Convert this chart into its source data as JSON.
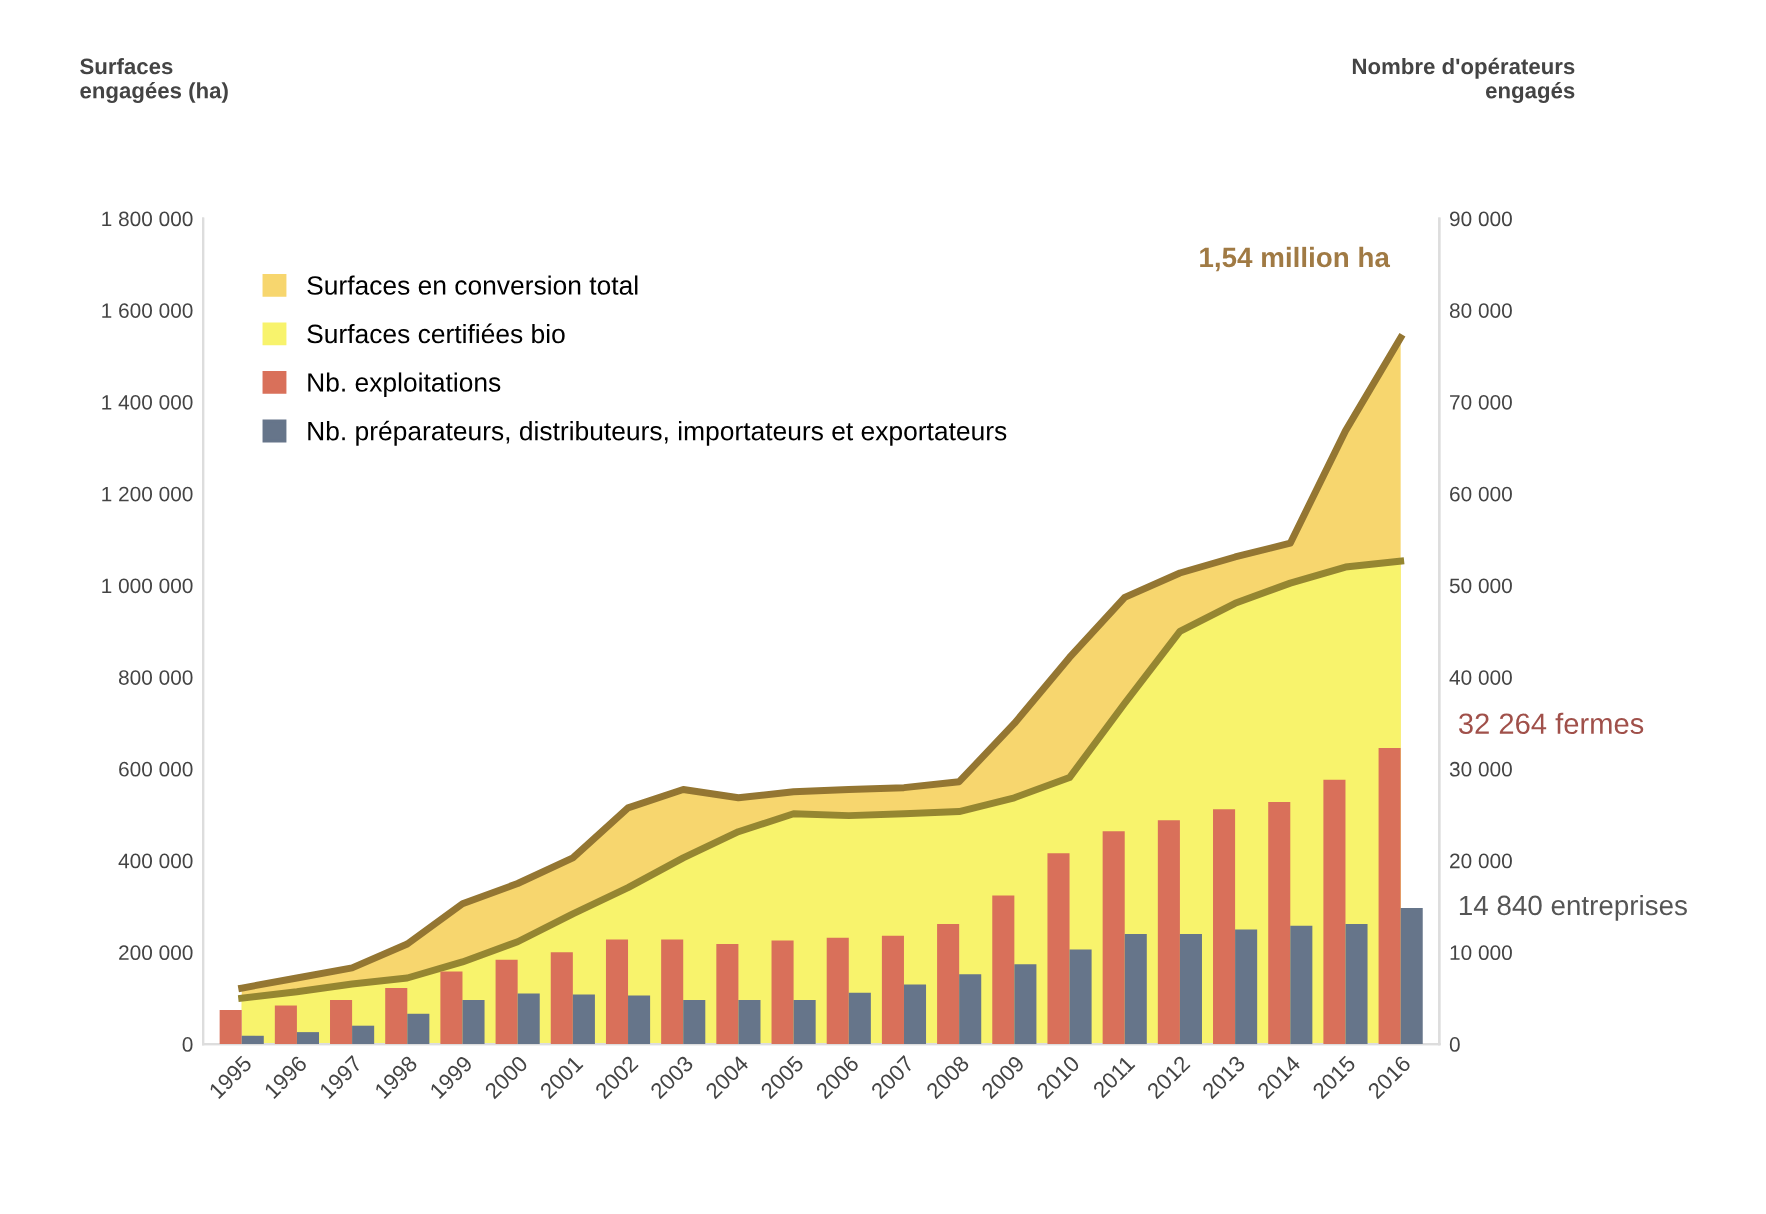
{
  "chart_data": {
    "type": "bar",
    "ylabel": "Surfaces\nengagées (ha)",
    "y2label": "Nombre d'opérateurs\nengagés",
    "categories": [
      "1995",
      "1996",
      "1997",
      "1998",
      "1999",
      "2000",
      "2001",
      "2002",
      "2003",
      "2004",
      "2005",
      "2006",
      "2007",
      "2008",
      "2009",
      "2010",
      "2011",
      "2012",
      "2013",
      "2014",
      "2015",
      "2016"
    ],
    "series": [
      {
        "name": "Surfaces en conversion total",
        "type": "area",
        "axis": "y",
        "color": "#f7d66e",
        "values": [
          122000,
          144000,
          166000,
          218000,
          306000,
          350000,
          406000,
          515000,
          555000,
          537000,
          550000,
          555000,
          559000,
          572000,
          699000,
          843000,
          974000,
          1027000,
          1062000,
          1092000,
          1337000,
          1540000
        ]
      },
      {
        "name": "Surfaces certifiées bio",
        "type": "area",
        "axis": "y",
        "color": "#f8f36c",
        "values": [
          100000,
          114000,
          131000,
          144000,
          179000,
          223000,
          284000,
          341000,
          406000,
          463000,
          502000,
          498000,
          502000,
          507000,
          537000,
          581000,
          743000,
          900000,
          961000,
          1005000,
          1040000,
          1053000
        ]
      },
      {
        "name": "Nb. exploitations",
        "axis": "y2",
        "color": "#d9705a",
        "values": [
          3700,
          4200,
          4800,
          6100,
          7900,
          9200,
          10000,
          11400,
          11400,
          10900,
          11300,
          11600,
          11800,
          13100,
          16200,
          20800,
          23200,
          24400,
          25600,
          26400,
          28800,
          32264
        ]
      },
      {
        "name": "Nb. préparateurs, distributeurs, importateurs et exportateurs",
        "axis": "y2",
        "color": "#66758a",
        "values": [
          900,
          1300,
          2000,
          3300,
          4800,
          5500,
          5400,
          5300,
          4800,
          4800,
          4800,
          5600,
          6500,
          7600,
          8700,
          10300,
          12000,
          12000,
          12500,
          12900,
          13100,
          14840
        ]
      }
    ],
    "ylim": [
      0,
      1800000
    ],
    "yticks": [
      0,
      {
        "value": 200000,
        "label": "200 000"
      },
      {
        "value": 400000,
        "label": "400 000"
      },
      {
        "value": 600000,
        "label": "600 000"
      },
      {
        "value": 800000,
        "label": "800 000"
      },
      {
        "value": 1000000,
        "label": "1 000 000"
      },
      {
        "value": 1200000,
        "label": "1 200 000"
      },
      {
        "value": 1400000,
        "label": "1 400 000"
      },
      {
        "value": 1600000,
        "label": "1 600 000"
      },
      {
        "value": 1800000,
        "label": "1 800 000"
      }
    ],
    "y2lim": [
      0,
      90000
    ],
    "y2ticks": [
      0,
      {
        "value": 10000,
        "label": "10 000"
      },
      {
        "value": 20000,
        "label": "20 000"
      },
      {
        "value": 30000,
        "label": "30 000"
      },
      {
        "value": 40000,
        "label": "40 000"
      },
      {
        "value": 50000,
        "label": "50 000"
      },
      {
        "value": 60000,
        "label": "60 000"
      },
      {
        "value": 70000,
        "label": "70 000"
      },
      {
        "value": 80000,
        "label": "80 000"
      },
      {
        "value": 90000,
        "label": "90 000"
      }
    ],
    "annotations": [
      "1,54 million ha",
      "32 264 fermes",
      "14 840 entreprises"
    ],
    "legend": "top left",
    "grid": false
  }
}
